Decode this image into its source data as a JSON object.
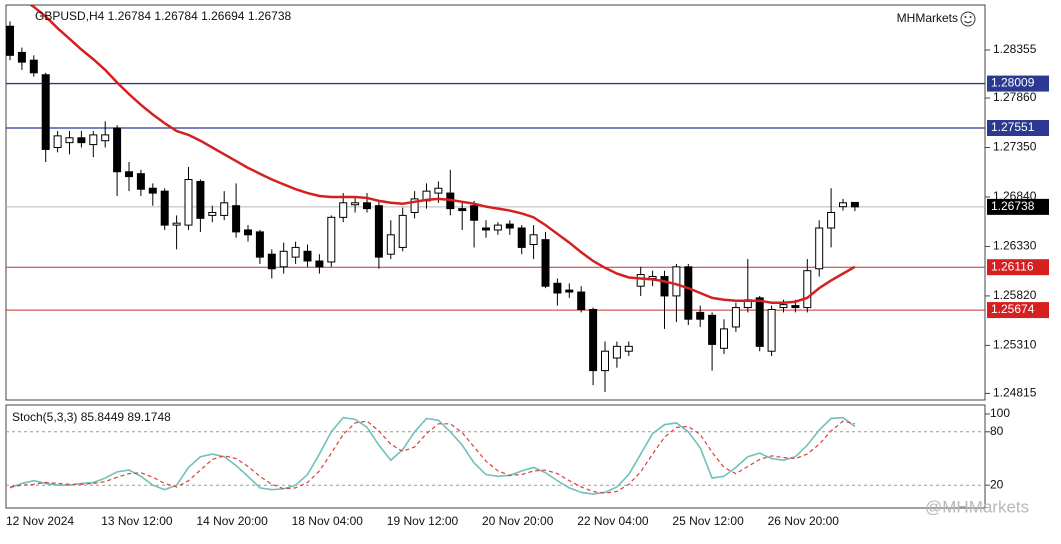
{
  "chart_data": [
    {
      "type": "candlestick",
      "title": "GBPUSD,H4  1.26784 1.26784 1.26694 1.26738",
      "brand": "MHMarkets",
      "categories": [
        "12 Nov 2024",
        null,
        null,
        null,
        null,
        null,
        null,
        null,
        "13 Nov 12:00",
        null,
        null,
        null,
        null,
        null,
        null,
        null,
        "14 Nov 20:00",
        null,
        null,
        null,
        null,
        null,
        null,
        null,
        "18 Nov 04:00",
        null,
        null,
        null,
        null,
        null,
        null,
        null,
        "19 Nov 12:00",
        null,
        null,
        null,
        null,
        null,
        null,
        null,
        "20 Nov 20:00",
        null,
        null,
        null,
        null,
        null,
        null,
        null,
        "22 Nov 04:00",
        null,
        null,
        null,
        null,
        null,
        null,
        null,
        "25 Nov 12:00",
        null,
        null,
        null,
        null,
        null,
        null,
        null,
        "26 Nov 20:00",
        null,
        null,
        null,
        null,
        null,
        null,
        null
      ],
      "open": [
        1.286,
        1.2833,
        1.2825,
        1.281,
        1.2735,
        1.274,
        1.2745,
        1.2738,
        1.2742,
        1.2755,
        1.271,
        1.2708,
        1.2693,
        1.269,
        1.2655,
        1.2655,
        1.27,
        1.2665,
        1.2665,
        1.2675,
        1.265,
        1.2648,
        1.2625,
        1.2612,
        1.2622,
        1.2628,
        1.2618,
        1.2617,
        1.2663,
        1.2676,
        1.2678,
        1.2675,
        1.2625,
        1.2632,
        1.2668,
        1.268,
        1.2688,
        1.2688,
        1.2672,
        1.2675,
        1.2652,
        1.265,
        1.2656,
        1.2652,
        1.2635,
        1.264,
        1.2595,
        1.2588,
        1.2586,
        1.2568,
        1.2505,
        1.2518,
        1.2525,
        1.2592,
        1.26,
        1.2602,
        1.2582,
        1.2612,
        1.2565,
        1.2562,
        1.2528,
        1.255,
        1.257,
        1.258,
        1.2525,
        1.257,
        1.2572,
        1.257,
        1.261,
        1.2652,
        1.2674,
        1.26784
      ],
      "high": [
        1.2865,
        1.2838,
        1.283,
        1.2812,
        1.2752,
        1.2752,
        1.2752,
        1.2752,
        1.2762,
        1.2758,
        1.272,
        1.2712,
        1.2698,
        1.2693,
        1.2665,
        1.2715,
        1.2702,
        1.2675,
        1.269,
        1.2698,
        1.2655,
        1.265,
        1.263,
        1.2637,
        1.2638,
        1.2635,
        1.2625,
        1.2665,
        1.2688,
        1.2685,
        1.2688,
        1.268,
        1.266,
        1.2673,
        1.269,
        1.2698,
        1.27,
        1.2712,
        1.268,
        1.268,
        1.266,
        1.2658,
        1.266,
        1.2655,
        1.2655,
        1.2648,
        1.26,
        1.2595,
        1.2592,
        1.257,
        1.2535,
        1.2535,
        1.2535,
        1.2612,
        1.2608,
        1.2608,
        1.2615,
        1.2615,
        1.2572,
        1.2565,
        1.2558,
        1.2575,
        1.262,
        1.2582,
        1.2572,
        1.2578,
        1.2578,
        1.262,
        1.266,
        1.2693,
        1.2682,
        1.26784
      ],
      "low": [
        1.2825,
        1.2815,
        1.2808,
        1.272,
        1.273,
        1.2728,
        1.2735,
        1.2725,
        1.2735,
        1.2685,
        1.269,
        1.2685,
        1.2675,
        1.265,
        1.263,
        1.265,
        1.2648,
        1.2658,
        1.266,
        1.2642,
        1.2638,
        1.2615,
        1.26,
        1.2605,
        1.2615,
        1.2612,
        1.2605,
        1.2612,
        1.2658,
        1.2668,
        1.2668,
        1.261,
        1.262,
        1.2628,
        1.2662,
        1.2672,
        1.2678,
        1.2665,
        1.265,
        1.2632,
        1.2642,
        1.2645,
        1.2645,
        1.2625,
        1.262,
        1.259,
        1.2572,
        1.258,
        1.2565,
        1.249,
        1.2483,
        1.2508,
        1.252,
        1.2582,
        1.2592,
        1.2548,
        1.2555,
        1.2552,
        1.255,
        1.2505,
        1.2522,
        1.2545,
        1.2565,
        1.2525,
        1.252,
        1.2565,
        1.2565,
        1.2565,
        1.2602,
        1.2632,
        1.267,
        1.26694
      ],
      "close": [
        1.283,
        1.2823,
        1.2812,
        1.2733,
        1.2747,
        1.2745,
        1.274,
        1.2748,
        1.2748,
        1.271,
        1.2705,
        1.2692,
        1.2688,
        1.2655,
        1.2657,
        1.2702,
        1.2662,
        1.2668,
        1.2678,
        1.2648,
        1.2645,
        1.2622,
        1.261,
        1.2628,
        1.2632,
        1.2618,
        1.2612,
        1.2663,
        1.2678,
        1.2678,
        1.2672,
        1.2622,
        1.2645,
        1.2665,
        1.2682,
        1.269,
        1.2693,
        1.2672,
        1.267,
        1.266,
        1.265,
        1.2655,
        1.2652,
        1.2632,
        1.2645,
        1.2592,
        1.2585,
        1.2586,
        1.2568,
        1.2505,
        1.2525,
        1.253,
        1.253,
        1.2604,
        1.2602,
        1.2582,
        1.2612,
        1.2558,
        1.2558,
        1.2532,
        1.2548,
        1.257,
        1.2578,
        1.253,
        1.2568,
        1.2573,
        1.257,
        1.2608,
        1.2652,
        1.2668,
        1.2678,
        1.26738
      ],
      "ma": {
        "color": "#d42020",
        "values": [
          1.2895,
          1.2888,
          1.288,
          1.287,
          1.2858,
          1.2847,
          1.2836,
          1.2826,
          1.2815,
          1.2802,
          1.279,
          1.2779,
          1.2769,
          1.276,
          1.2752,
          1.2748,
          1.2742,
          1.2735,
          1.2728,
          1.2721,
          1.2714,
          1.2708,
          1.2702,
          1.2697,
          1.2692,
          1.2688,
          1.2685,
          1.2684,
          1.2684,
          1.2684,
          1.2683,
          1.268,
          1.2678,
          1.2677,
          1.2679,
          1.2681,
          1.2682,
          1.2681,
          1.2679,
          1.2677,
          1.2674,
          1.2672,
          1.267,
          1.2667,
          1.2663,
          1.2655,
          1.2646,
          1.2637,
          1.2627,
          1.2618,
          1.2611,
          1.2605,
          1.2601,
          1.26,
          1.2599,
          1.2597,
          1.2594,
          1.259,
          1.2585,
          1.258,
          1.2578,
          1.2577,
          1.2577,
          1.2577,
          1.2575,
          1.2575,
          1.2576,
          1.258,
          1.259,
          1.2598,
          1.2605,
          1.2612
        ]
      },
      "levels": [
        {
          "value": 1.28009,
          "color": "#2b3990",
          "box": "#2b3990"
        },
        {
          "value": 1.27551,
          "color": "#2b3990",
          "box": "#2b3990"
        },
        {
          "value": 1.26738,
          "color": "#b8b8b8",
          "box": "#000000"
        },
        {
          "value": 1.26116,
          "color": "#c0392b",
          "box": "#d42020"
        },
        {
          "value": 1.25674,
          "color": "#c0392b",
          "box": "#d42020"
        }
      ],
      "bull_color": "#ffffff",
      "bear_color": "#000000",
      "ylim": [
        1.24747,
        1.28819
      ],
      "yticks": [
        1.28355,
        {
          "value": 1.2786,
          "label": "1.27860"
        },
        {
          "value": 1.2735,
          "label": "1.27350"
        },
        {
          "value": 1.2684,
          "label": "1.26840"
        },
        {
          "value": 1.2633,
          "label": "1.26330"
        },
        {
          "value": 1.2582,
          "label": "1.25820"
        },
        {
          "value": 1.2531,
          "label": "1.25310"
        },
        1.24815
      ]
    },
    {
      "type": "line",
      "title": "Stoch(5,3,3) 85.8449 89.1748",
      "series": [
        {
          "color": "#6fc2b8",
          "dash": false,
          "values": [
            17,
            22,
            25,
            22,
            20,
            20,
            22,
            23,
            28,
            35,
            37,
            30,
            20,
            15,
            20,
            40,
            52,
            55,
            52,
            42,
            30,
            17,
            15,
            16,
            20,
            32,
            55,
            80,
            96,
            94,
            85,
            65,
            48,
            60,
            80,
            95,
            93,
            80,
            65,
            45,
            32,
            30,
            31,
            36,
            40,
            34,
            25,
            17,
            12,
            10,
            12,
            18,
            32,
            55,
            78,
            88,
            90,
            80,
            62,
            28,
            30,
            40,
            52,
            56,
            50,
            48,
            52,
            65,
            82,
            95,
            96,
            86
          ]
        },
        {
          "color": "#d9403a",
          "dash": true,
          "values": [
            18,
            20,
            21,
            23,
            22,
            21,
            21,
            22,
            24,
            29,
            33,
            34,
            29,
            22,
            18,
            25,
            37,
            49,
            53,
            50,
            41,
            30,
            21,
            16,
            17,
            23,
            36,
            56,
            77,
            90,
            92,
            81,
            66,
            58,
            63,
            78,
            89,
            89,
            79,
            63,
            47,
            36,
            31,
            32,
            36,
            37,
            33,
            25,
            18,
            13,
            11,
            13,
            21,
            35,
            55,
            74,
            85,
            86,
            77,
            57,
            40,
            33,
            41,
            49,
            53,
            51,
            50,
            55,
            66,
            81,
            92,
            89
          ]
        }
      ],
      "ylim": [
        0,
        100
      ],
      "yticks": [
        20,
        80,
        100
      ],
      "grid_levels": [
        20,
        80
      ]
    }
  ],
  "watermark": "@MHMarkets"
}
